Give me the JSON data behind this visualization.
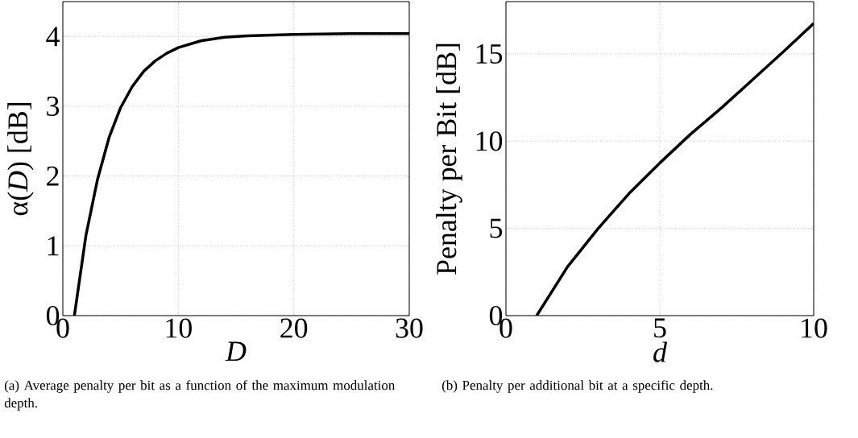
{
  "chart_data": [
    {
      "type": "line",
      "xlabel": "D",
      "ylabel": "α(*D*) [dB]",
      "xlim": [
        0,
        30
      ],
      "ylim": [
        0,
        4.5
      ],
      "xticks": [
        0,
        10,
        20,
        30
      ],
      "yticks": [
        0,
        1,
        2,
        3,
        4
      ],
      "grid": true,
      "x": [
        1,
        2,
        3,
        4,
        5,
        6,
        7,
        8,
        9,
        10,
        12,
        14,
        16,
        20,
        25,
        30
      ],
      "series": [
        {
          "color": "#000000",
          "values": [
            0,
            1.15,
            1.95,
            2.55,
            2.98,
            3.28,
            3.5,
            3.65,
            3.76,
            3.84,
            3.94,
            3.99,
            4.01,
            4.03,
            4.04,
            4.04
          ]
        }
      ],
      "annotations": [
        "(a)  Average penalty per bit as a function of the maximum modulation depth."
      ]
    },
    {
      "type": "line",
      "xlabel": "d",
      "ylabel": "Penalty per Bit [dB]",
      "xlim": [
        0,
        10
      ],
      "ylim": [
        0,
        18
      ],
      "xticks": [
        0,
        5,
        10
      ],
      "yticks": [
        0,
        5,
        10,
        15
      ],
      "grid": true,
      "x": [
        1,
        2,
        3,
        4,
        5,
        6,
        7,
        8,
        9,
        10
      ],
      "series": [
        {
          "color": "#000000",
          "values": [
            0,
            2.8,
            5.0,
            7.0,
            8.75,
            10.4,
            11.9,
            13.5,
            15.1,
            16.75
          ]
        }
      ],
      "annotations": [
        "(b)  Penalty per additional bit at a specific depth."
      ]
    }
  ]
}
